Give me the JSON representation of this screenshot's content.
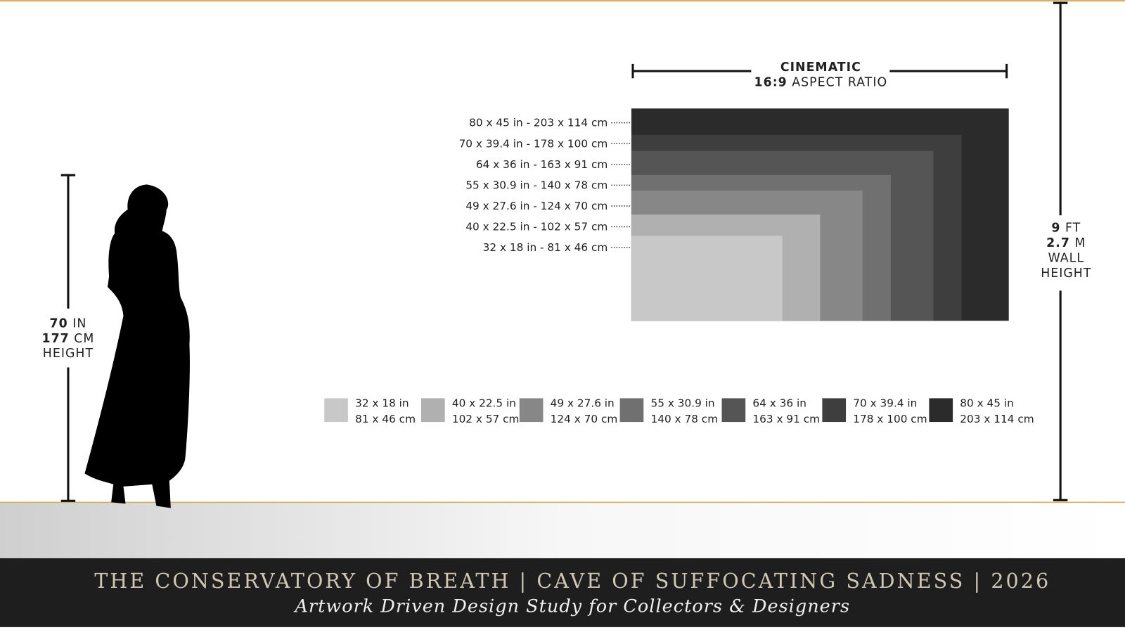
{
  "ratio": {
    "title": "CINEMATIC",
    "ratio": "16:9",
    "text": "ASPECT RATIO"
  },
  "wall": {
    "ft": "9",
    "ft_unit": "FT",
    "m": "2.7",
    "m_unit": "M",
    "label1": "WALL",
    "label2": "HEIGHT"
  },
  "person": {
    "in": "70",
    "in_unit": "IN",
    "cm": "177",
    "cm_unit": "CM",
    "label": "HEIGHT"
  },
  "sizes": [
    {
      "label": "32 x 18 in - 81 x 46 cm",
      "legend_in": "32 x 18 in",
      "legend_cm": "81 x 46 cm",
      "width_in": 32,
      "height_in": 18,
      "color": "#c8c8c8"
    },
    {
      "label": "40 x 22.5 in - 102 x 57 cm",
      "legend_in": "40 x 22.5 in",
      "legend_cm": "102 x 57 cm",
      "width_in": 40,
      "height_in": 22.5,
      "color": "#b0b0b0"
    },
    {
      "label": "49 x 27.6 in - 124 x 70 cm",
      "legend_in": "49 x 27.6 in",
      "legend_cm": "124 x 70 cm",
      "width_in": 49,
      "height_in": 27.6,
      "color": "#878787"
    },
    {
      "label": "55 x 30.9 in - 140 x 78 cm",
      "legend_in": "55 x 30.9 in",
      "legend_cm": "140 x 78 cm",
      "width_in": 55,
      "height_in": 30.9,
      "color": "#707070"
    },
    {
      "label": "64 x 36 in - 163 x 91 cm",
      "legend_in": "64 x 36 in",
      "legend_cm": "163 x 91 cm",
      "width_in": 64,
      "height_in": 36,
      "color": "#555555"
    },
    {
      "label": "70 x 39.4 in - 178 x 100 cm",
      "legend_in": "70 x 39.4 in",
      "legend_cm": "178 x 100 cm",
      "width_in": 70,
      "height_in": 39.4,
      "color": "#3e3e3e"
    },
    {
      "label": "80 x 45 in - 203 x 114 cm",
      "legend_in": "80 x 45 in",
      "legend_cm": "203 x 114 cm",
      "width_in": 80,
      "height_in": 45,
      "color": "#2b2b2b"
    }
  ],
  "footer": {
    "title": "THE CONSERVATORY OF BREATH | CAVE OF SUFFOCATING SADNESS | 2026",
    "subtitle": "Artwork Driven Design Study for Collectors & Designers"
  }
}
